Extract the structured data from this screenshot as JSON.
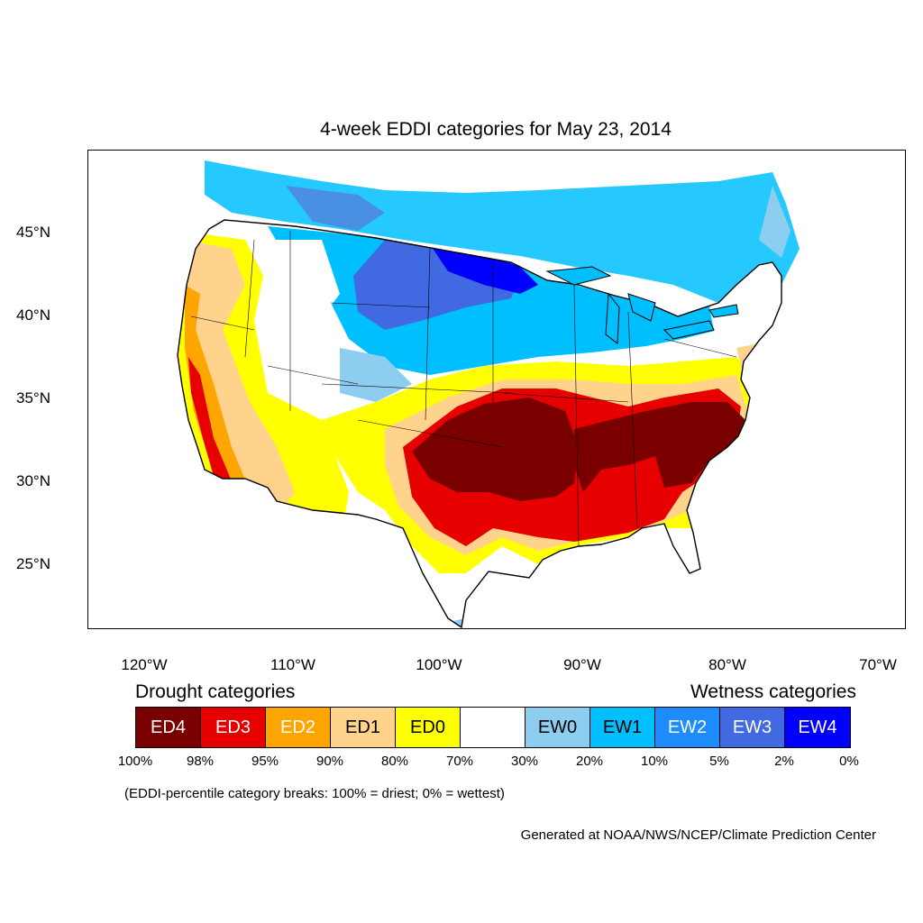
{
  "title": "4-week EDDI categories for May 23, 2014",
  "y_axis_labels": [
    "45°N",
    "40°N",
    "35°N",
    "30°N",
    "25°N"
  ],
  "x_axis_labels": [
    "120°W",
    "110°W",
    "100°W",
    "90°W",
    "80°W",
    "70°W"
  ],
  "legend": {
    "drought_heading": "Drought categories",
    "wetness_heading": "Wetness categories",
    "categories": [
      {
        "label": "ED4",
        "color": "#7a0000",
        "text_color": "#ffffff"
      },
      {
        "label": "ED3",
        "color": "#e60000",
        "text_color": "#ffffff"
      },
      {
        "label": "ED2",
        "color": "#ffa500",
        "text_color": "#ffffff"
      },
      {
        "label": "ED1",
        "color": "#ffd38c",
        "text_color": "#000000"
      },
      {
        "label": "ED0",
        "color": "#ffff00",
        "text_color": "#000000"
      },
      {
        "label": "",
        "color": "#ffffff",
        "text_color": "#000000"
      },
      {
        "label": "EW0",
        "color": "#8ccdf0",
        "text_color": "#000000"
      },
      {
        "label": "EW1",
        "color": "#00bfff",
        "text_color": "#000000"
      },
      {
        "label": "EW2",
        "color": "#1e8cff",
        "text_color": "#ffffff"
      },
      {
        "label": "EW3",
        "color": "#4169e1",
        "text_color": "#ffffff"
      },
      {
        "label": "EW4",
        "color": "#0000ff",
        "text_color": "#ffffff"
      }
    ],
    "percentile_breaks": [
      "100%",
      "98%",
      "95%",
      "90%",
      "80%",
      "70%",
      "30%",
      "20%",
      "10%",
      "5%",
      "2%",
      "0%"
    ]
  },
  "note": "(EDDI-percentile category breaks: 100% = driest; 0% = wettest)",
  "credit": "Generated at NOAA/NWS/NCEP/Climate Prediction Center"
}
